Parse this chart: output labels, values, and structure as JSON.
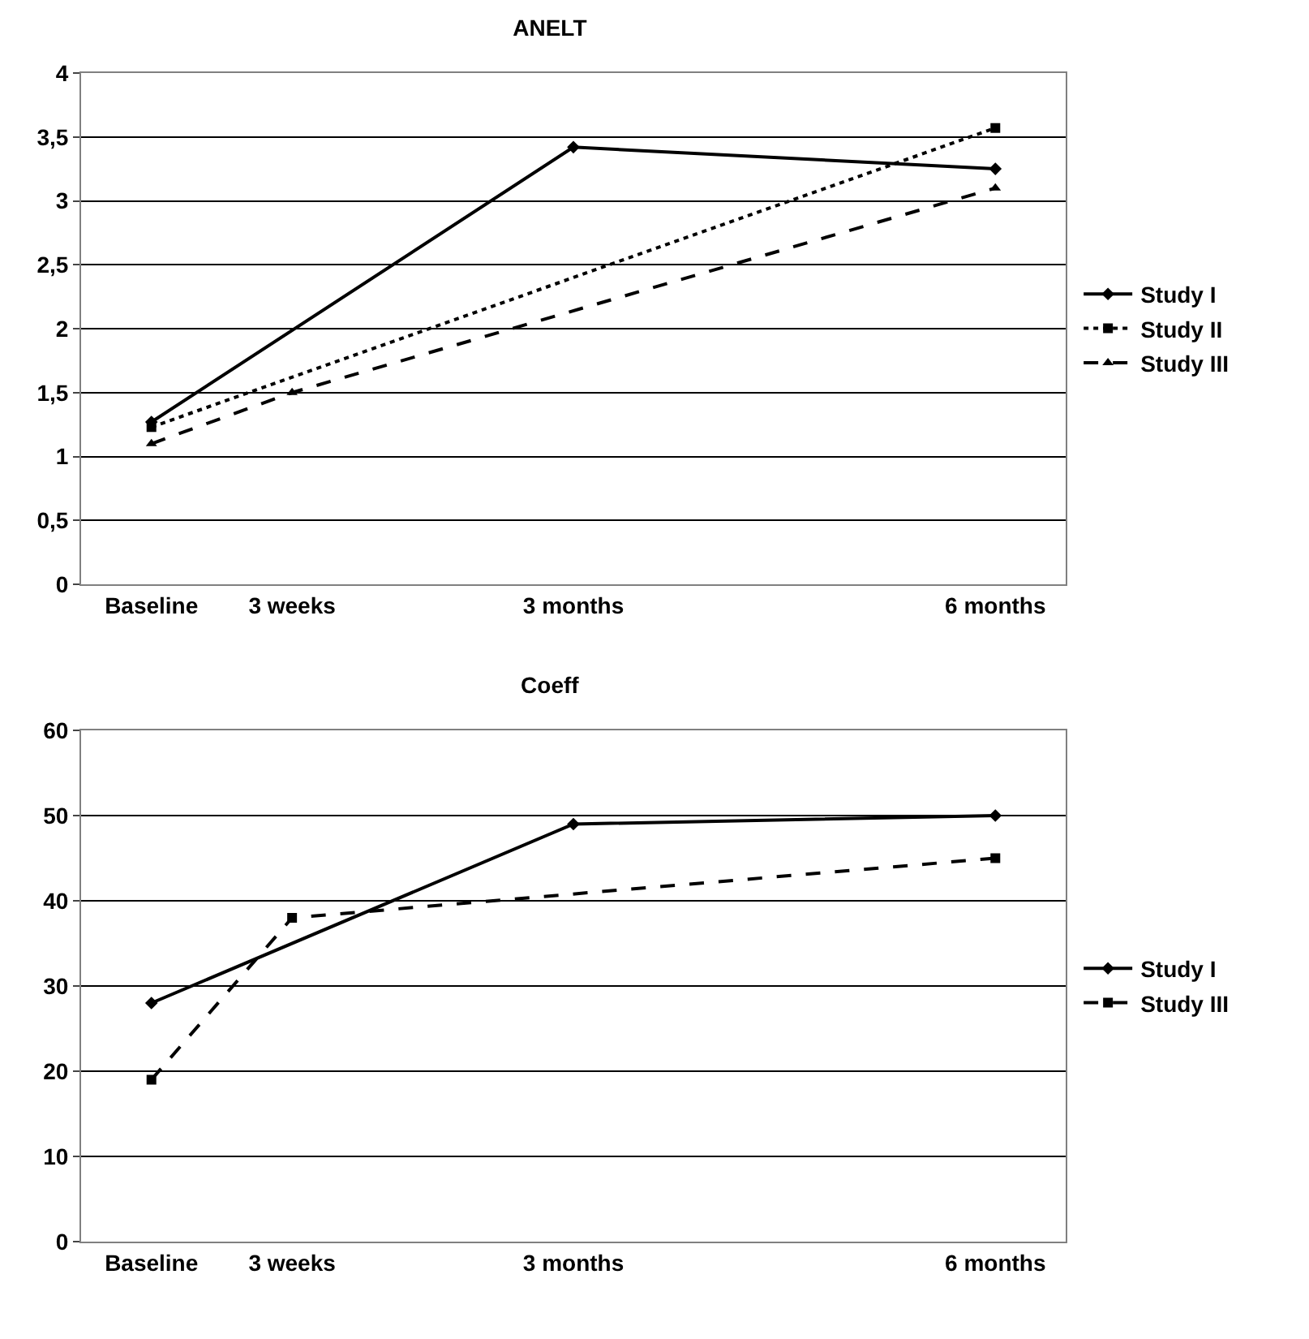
{
  "chart_data": [
    {
      "type": "line",
      "title": "ANELT",
      "categories": [
        "Baseline",
        "3 weeks",
        null,
        "3 months",
        null,
        null,
        "6 months"
      ],
      "series": [
        {
          "name": "Study I",
          "color": "#000000",
          "marker": "diamond",
          "line_style": "solid",
          "values": [
            1.27,
            null,
            null,
            3.42,
            null,
            null,
            3.25
          ]
        },
        {
          "name": "Study II",
          "color": "#000000",
          "marker": "square",
          "line_style": "dotted",
          "values": [
            1.23,
            null,
            null,
            null,
            null,
            null,
            3.57
          ]
        },
        {
          "name": "Study III",
          "color": "#000000",
          "marker": "triangle",
          "line_style": "dashed",
          "values": [
            1.1,
            1.5,
            null,
            null,
            null,
            null,
            3.1
          ]
        }
      ],
      "ylim": [
        0,
        4
      ],
      "yticks": [
        0,
        {
          "value": 0.5,
          "label": "0,5"
        },
        1,
        {
          "value": 1.5,
          "label": "1,5"
        },
        2,
        {
          "value": 2.5,
          "label": "2,5"
        },
        3,
        {
          "value": 3.5,
          "label": "3,5"
        },
        4
      ],
      "grid": "y",
      "legend": "right"
    },
    {
      "type": "line",
      "title": "Coeff",
      "categories": [
        "Baseline",
        "3 weeks",
        null,
        "3 months",
        null,
        null,
        "6 months"
      ],
      "series": [
        {
          "name": "Study I",
          "color": "#000000",
          "marker": "diamond",
          "line_style": "solid",
          "values": [
            28,
            null,
            null,
            49,
            null,
            null,
            50
          ]
        },
        {
          "name": "Study III",
          "color": "#000000",
          "marker": "square",
          "line_style": "dashed",
          "values": [
            19,
            38,
            null,
            null,
            null,
            null,
            45
          ]
        }
      ],
      "ylim": [
        0,
        60
      ],
      "yticks": [
        0,
        10,
        20,
        30,
        40,
        50,
        60
      ],
      "grid": "y",
      "legend": "right"
    }
  ]
}
